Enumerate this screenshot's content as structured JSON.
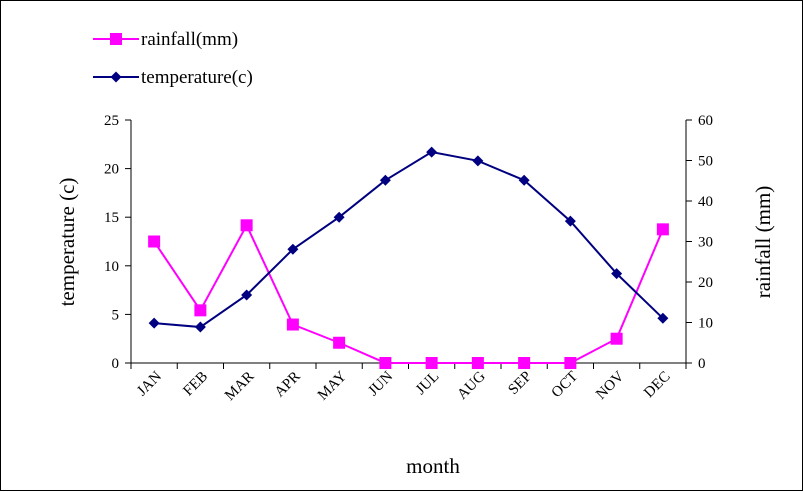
{
  "chart_data": {
    "type": "line",
    "title": "",
    "xlabel": "month",
    "ylabel": "temperature (c)",
    "y2label": "rainfall (mm)",
    "categories": [
      "JAN",
      "FEB",
      "MAR",
      "APR",
      "MAY",
      "JUN",
      "JUL",
      "AUG",
      "SEP",
      "OCT",
      "NOV",
      "DEC"
    ],
    "ylim": [
      0,
      25
    ],
    "yticks": [
      0,
      5,
      10,
      15,
      20,
      25
    ],
    "y2lim": [
      0,
      60
    ],
    "y2ticks": [
      0,
      10,
      20,
      30,
      40,
      50,
      60
    ],
    "grid": false,
    "legend_position": "top-left",
    "series": [
      {
        "name": "rainfall(mm)",
        "axis": "right",
        "marker": "square",
        "color": "#FF00FF",
        "values": [
          30,
          13,
          34,
          9.5,
          5,
          0,
          0,
          0,
          0,
          0,
          6,
          33
        ]
      },
      {
        "name": "temperature(c)",
        "axis": "left",
        "marker": "diamond",
        "color": "#000080",
        "values": [
          4.1,
          3.7,
          7,
          11.7,
          15,
          18.8,
          21.7,
          20.8,
          18.8,
          14.6,
          9.2,
          4.6
        ]
      }
    ]
  }
}
